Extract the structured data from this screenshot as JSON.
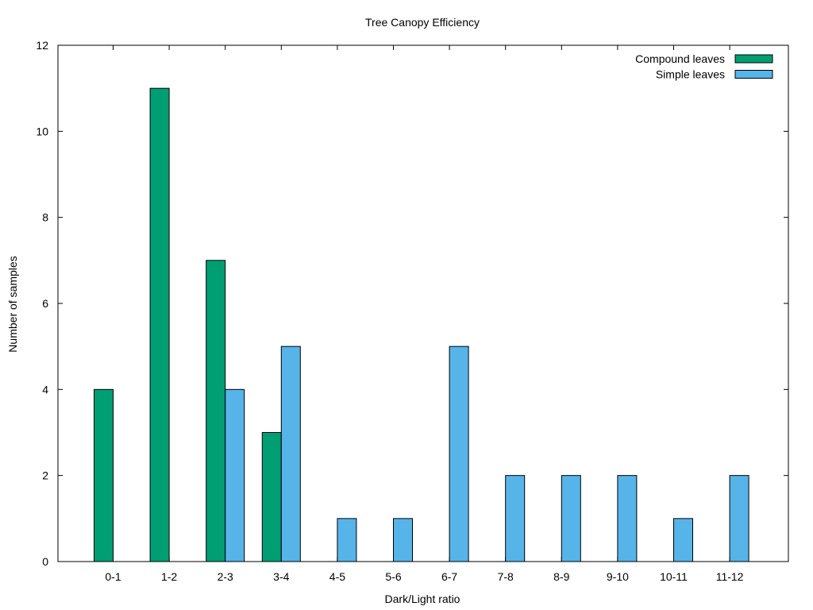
{
  "chart_data": {
    "type": "bar",
    "title": "Tree Canopy Efficiency",
    "xlabel": "Dark/Light ratio",
    "ylabel": "Number of samples",
    "categories": [
      "0-1",
      "1-2",
      "2-3",
      "3-4",
      "4-5",
      "5-6",
      "6-7",
      "7-8",
      "8-9",
      "9-10",
      "10-11",
      "11-12"
    ],
    "series": [
      {
        "name": "Compound leaves",
        "color": "#009e73",
        "values": [
          4,
          11,
          7,
          3,
          0,
          0,
          0,
          0,
          0,
          0,
          0,
          0
        ]
      },
      {
        "name": "Simple leaves",
        "color": "#56b4e9",
        "values": [
          0,
          0,
          4,
          5,
          1,
          1,
          5,
          2,
          2,
          2,
          1,
          2
        ]
      }
    ],
    "ylim": [
      0,
      12
    ],
    "yticks": [
      "0",
      "2",
      "4",
      "6",
      "8",
      "10",
      "12"
    ],
    "grid": false,
    "legend_position": "top-right"
  }
}
